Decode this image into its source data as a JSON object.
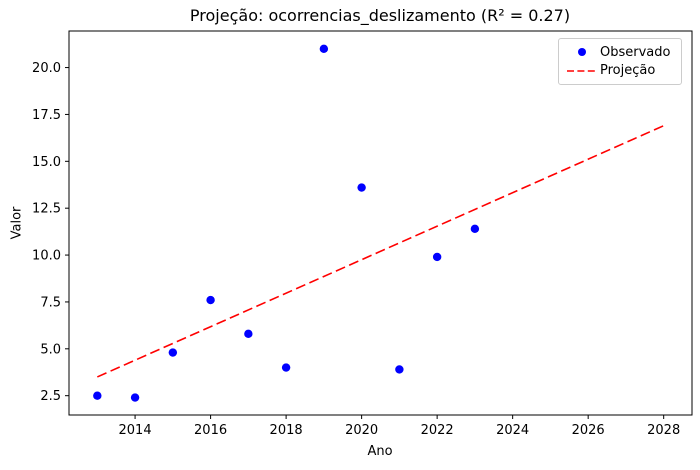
{
  "figure": {
    "background": "#ffffff",
    "text_color": "#000000",
    "spine_color": "#000000"
  },
  "chart_data": {
    "type": "scatter",
    "title": "Projeção: ocorrencias_deslizamento (R² = 0.27)",
    "xlabel": "Ano",
    "ylabel": "Valor",
    "r_squared": "0.27",
    "xlim": [
      2012.25,
      2028.75
    ],
    "ylim": [
      1.47,
      21.95
    ],
    "x_ticks": [
      2014,
      2016,
      2018,
      2020,
      2022,
      2024,
      2026,
      2028
    ],
    "x_tick_labels": [
      "2014",
      "2016",
      "2018",
      "2020",
      "2022",
      "2024",
      "2026",
      "2028"
    ],
    "y_ticks": [
      2.5,
      5.0,
      7.5,
      10.0,
      12.5,
      15.0,
      17.5,
      20.0
    ],
    "y_tick_labels": [
      "2.5",
      "5.0",
      "7.5",
      "10.0",
      "12.5",
      "15.0",
      "17.5",
      "20.0"
    ],
    "grid": false,
    "legend": {
      "position": "upper right",
      "items": [
        "Observado",
        "Projeção"
      ]
    },
    "series": [
      {
        "name": "Observado",
        "kind": "scatter",
        "color": "#0000ff",
        "marker": "circle",
        "x": [
          2013,
          2014,
          2015,
          2016,
          2017,
          2018,
          2019,
          2020,
          2021,
          2022,
          2023
        ],
        "y": [
          2.5,
          2.4,
          4.8,
          7.6,
          5.8,
          4.0,
          21.0,
          13.6,
          3.9,
          9.9,
          11.4
        ]
      },
      {
        "name": "Projeção",
        "kind": "line",
        "style": "dashed",
        "color": "#ff0000",
        "x": [
          2013,
          2028
        ],
        "y": [
          3.5,
          16.9
        ]
      }
    ]
  }
}
